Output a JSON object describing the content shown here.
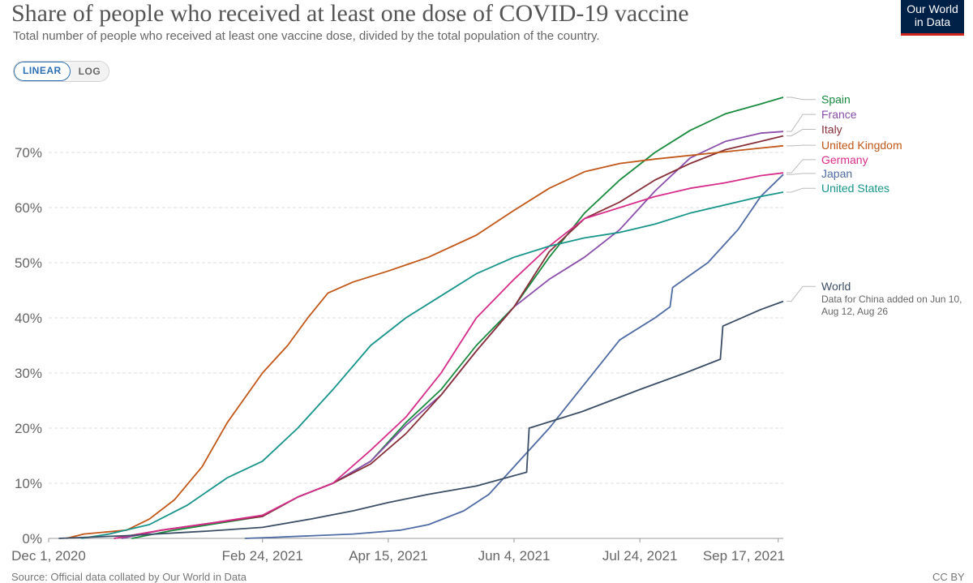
{
  "header": {
    "title": "Share of people who received at least one dose of COVID-19 vaccine",
    "subtitle": "Total number of people who received at least one vaccine dose, divided by the total population of the country.",
    "logo_line1": "Our World",
    "logo_line2": "in Data"
  },
  "controls": {
    "linear_label": "LINEAR",
    "log_label": "LOG",
    "selected": "linear"
  },
  "footer": {
    "source": "Source: Official data collated by Our World in Data",
    "license": "CC BY"
  },
  "colors": {
    "grid": "#dddddd",
    "axis": "#999999"
  },
  "chart_data": {
    "type": "line",
    "title": "Share of people who received at least one dose of COVID-19 vaccine",
    "xlabel": "",
    "ylabel": "",
    "x_domain": [
      "2020-12-01",
      "2021-09-19"
    ],
    "ylim": [
      0,
      80
    ],
    "y_ticks": [
      0,
      10,
      20,
      30,
      40,
      50,
      60,
      70
    ],
    "y_tick_labels": [
      "0%",
      "10%",
      "20%",
      "30%",
      "40%",
      "50%",
      "60%",
      "70%"
    ],
    "x_ticks": [
      "2020-12-01",
      "2021-02-24",
      "2021-04-15",
      "2021-06-04",
      "2021-07-24",
      "2021-09-17"
    ],
    "x_tick_labels": [
      "Dec 1, 2020",
      "Feb 24, 2021",
      "Apr 15, 2021",
      "Jun 4, 2021",
      "Jul 24, 2021",
      "Sep 17, 2021"
    ],
    "grid": true,
    "legend_position": "right",
    "series": [
      {
        "name": "Spain",
        "color": "#198a3e",
        "label_y": 79.6,
        "points": [
          [
            "2021-01-03",
            0
          ],
          [
            "2021-01-20",
            1.5
          ],
          [
            "2021-02-10",
            3.0
          ],
          [
            "2021-02-24",
            4.0
          ],
          [
            "2021-03-10",
            7.5
          ],
          [
            "2021-03-24",
            10
          ],
          [
            "2021-04-08",
            14
          ],
          [
            "2021-04-22",
            21
          ],
          [
            "2021-05-06",
            27
          ],
          [
            "2021-05-20",
            35
          ],
          [
            "2021-06-04",
            42
          ],
          [
            "2021-06-18",
            51
          ],
          [
            "2021-07-02",
            59
          ],
          [
            "2021-07-16",
            65
          ],
          [
            "2021-07-30",
            70
          ],
          [
            "2021-08-13",
            74
          ],
          [
            "2021-08-27",
            77
          ],
          [
            "2021-09-10",
            78.8
          ],
          [
            "2021-09-19",
            80
          ]
        ]
      },
      {
        "name": "France",
        "color": "#8a4eaa",
        "label_y": 76.9,
        "points": [
          [
            "2020-12-30",
            0
          ],
          [
            "2021-01-15",
            1.5
          ],
          [
            "2021-02-01",
            2.6
          ],
          [
            "2021-02-24",
            4.0
          ],
          [
            "2021-03-10",
            7.5
          ],
          [
            "2021-03-24",
            10
          ],
          [
            "2021-04-08",
            14
          ],
          [
            "2021-04-22",
            20.5
          ],
          [
            "2021-05-06",
            26
          ],
          [
            "2021-05-20",
            34
          ],
          [
            "2021-06-04",
            42
          ],
          [
            "2021-06-18",
            47
          ],
          [
            "2021-07-02",
            51
          ],
          [
            "2021-07-16",
            56
          ],
          [
            "2021-07-30",
            63
          ],
          [
            "2021-08-13",
            69
          ],
          [
            "2021-08-27",
            72
          ],
          [
            "2021-09-10",
            73.5
          ],
          [
            "2021-09-19",
            73.8
          ]
        ]
      },
      {
        "name": "Italy",
        "color": "#883039",
        "label_y": 74.2,
        "points": [
          [
            "2020-12-27",
            0
          ],
          [
            "2021-01-15",
            1.5
          ],
          [
            "2021-02-01",
            2.6
          ],
          [
            "2021-02-24",
            4.0
          ],
          [
            "2021-03-10",
            7.5
          ],
          [
            "2021-03-24",
            10
          ],
          [
            "2021-04-08",
            13.5
          ],
          [
            "2021-04-22",
            19
          ],
          [
            "2021-05-06",
            26
          ],
          [
            "2021-05-20",
            34
          ],
          [
            "2021-06-04",
            42
          ],
          [
            "2021-06-18",
            52
          ],
          [
            "2021-07-02",
            58
          ],
          [
            "2021-07-16",
            61
          ],
          [
            "2021-07-30",
            65
          ],
          [
            "2021-08-13",
            68
          ],
          [
            "2021-08-27",
            70.5
          ],
          [
            "2021-09-10",
            72
          ],
          [
            "2021-09-19",
            73
          ]
        ]
      },
      {
        "name": "United Kingdom",
        "color": "#c15718",
        "label_y": 71.3,
        "points": [
          [
            "2020-12-08",
            0
          ],
          [
            "2020-12-15",
            0.8
          ],
          [
            "2021-01-01",
            1.5
          ],
          [
            "2021-01-10",
            3.5
          ],
          [
            "2021-01-20",
            7
          ],
          [
            "2021-01-31",
            13
          ],
          [
            "2021-02-10",
            21
          ],
          [
            "2021-02-24",
            30
          ],
          [
            "2021-03-06",
            35
          ],
          [
            "2021-03-14",
            40
          ],
          [
            "2021-03-22",
            44.5
          ],
          [
            "2021-04-01",
            46.5
          ],
          [
            "2021-04-15",
            48.5
          ],
          [
            "2021-05-01",
            51
          ],
          [
            "2021-05-20",
            55
          ],
          [
            "2021-06-04",
            59.5
          ],
          [
            "2021-06-18",
            63.5
          ],
          [
            "2021-07-02",
            66.5
          ],
          [
            "2021-07-16",
            68
          ],
          [
            "2021-07-30",
            68.8
          ],
          [
            "2021-08-20",
            69.8
          ],
          [
            "2021-09-10",
            70.8
          ],
          [
            "2021-09-19",
            71.2
          ]
        ]
      },
      {
        "name": "Germany",
        "color": "#d62d8a",
        "label_y": 68.7,
        "points": [
          [
            "2020-12-27",
            0
          ],
          [
            "2021-01-15",
            1.5
          ],
          [
            "2021-02-01",
            2.6
          ],
          [
            "2021-02-24",
            4.2
          ],
          [
            "2021-03-10",
            7.5
          ],
          [
            "2021-03-24",
            10
          ],
          [
            "2021-04-08",
            16
          ],
          [
            "2021-04-22",
            22
          ],
          [
            "2021-05-06",
            30
          ],
          [
            "2021-05-20",
            40
          ],
          [
            "2021-06-04",
            47
          ],
          [
            "2021-06-18",
            53
          ],
          [
            "2021-07-02",
            58
          ],
          [
            "2021-07-16",
            60
          ],
          [
            "2021-07-30",
            62
          ],
          [
            "2021-08-13",
            63.5
          ],
          [
            "2021-08-27",
            64.5
          ],
          [
            "2021-09-10",
            65.8
          ],
          [
            "2021-09-19",
            66.3
          ]
        ]
      },
      {
        "name": "Japan",
        "color": "#4e6ba3",
        "label_y": 66.2,
        "points": [
          [
            "2021-02-17",
            0
          ],
          [
            "2021-03-01",
            0.2
          ],
          [
            "2021-04-01",
            0.8
          ],
          [
            "2021-04-20",
            1.5
          ],
          [
            "2021-05-01",
            2.5
          ],
          [
            "2021-05-15",
            5
          ],
          [
            "2021-05-25",
            8
          ],
          [
            "2021-06-04",
            13
          ],
          [
            "2021-06-18",
            20
          ],
          [
            "2021-07-02",
            28
          ],
          [
            "2021-07-16",
            36
          ],
          [
            "2021-07-30",
            40
          ],
          [
            "2021-08-05",
            42
          ],
          [
            "2021-08-06",
            45.5
          ],
          [
            "2021-08-20",
            50
          ],
          [
            "2021-09-01",
            56
          ],
          [
            "2021-09-10",
            62
          ],
          [
            "2021-09-19",
            66
          ]
        ]
      },
      {
        "name": "United States",
        "color": "#18948a",
        "label_y": 63.5,
        "points": [
          [
            "2020-12-14",
            0
          ],
          [
            "2020-12-25",
            0.8
          ],
          [
            "2021-01-10",
            2.5
          ],
          [
            "2021-01-25",
            6
          ],
          [
            "2021-02-10",
            11
          ],
          [
            "2021-02-24",
            14
          ],
          [
            "2021-03-10",
            20
          ],
          [
            "2021-03-24",
            27
          ],
          [
            "2021-04-08",
            35
          ],
          [
            "2021-04-22",
            40
          ],
          [
            "2021-05-06",
            44
          ],
          [
            "2021-05-20",
            48
          ],
          [
            "2021-06-04",
            51
          ],
          [
            "2021-06-18",
            53
          ],
          [
            "2021-07-02",
            54.5
          ],
          [
            "2021-07-16",
            55.5
          ],
          [
            "2021-07-30",
            57
          ],
          [
            "2021-08-13",
            59
          ],
          [
            "2021-08-27",
            60.5
          ],
          [
            "2021-09-10",
            62
          ],
          [
            "2021-09-19",
            62.8
          ]
        ]
      },
      {
        "name": "World",
        "color": "#3c4e66",
        "label_y": 45.7,
        "note": "Data for China added on Jun 10, Aug 12, Aug 26",
        "points": [
          [
            "2020-12-05",
            0
          ],
          [
            "2021-01-01",
            0.5
          ],
          [
            "2021-02-01",
            1.3
          ],
          [
            "2021-02-24",
            2.0
          ],
          [
            "2021-03-15",
            3.5
          ],
          [
            "2021-04-01",
            5
          ],
          [
            "2021-04-15",
            6.5
          ],
          [
            "2021-05-01",
            8
          ],
          [
            "2021-05-20",
            9.5
          ],
          [
            "2021-06-09",
            12
          ],
          [
            "2021-06-10",
            20
          ],
          [
            "2021-07-01",
            23
          ],
          [
            "2021-07-24",
            27
          ],
          [
            "2021-08-11",
            30
          ],
          [
            "2021-08-25",
            32.5
          ],
          [
            "2021-08-26",
            38.5
          ],
          [
            "2021-09-10",
            41.5
          ],
          [
            "2021-09-19",
            43
          ]
        ]
      }
    ]
  }
}
